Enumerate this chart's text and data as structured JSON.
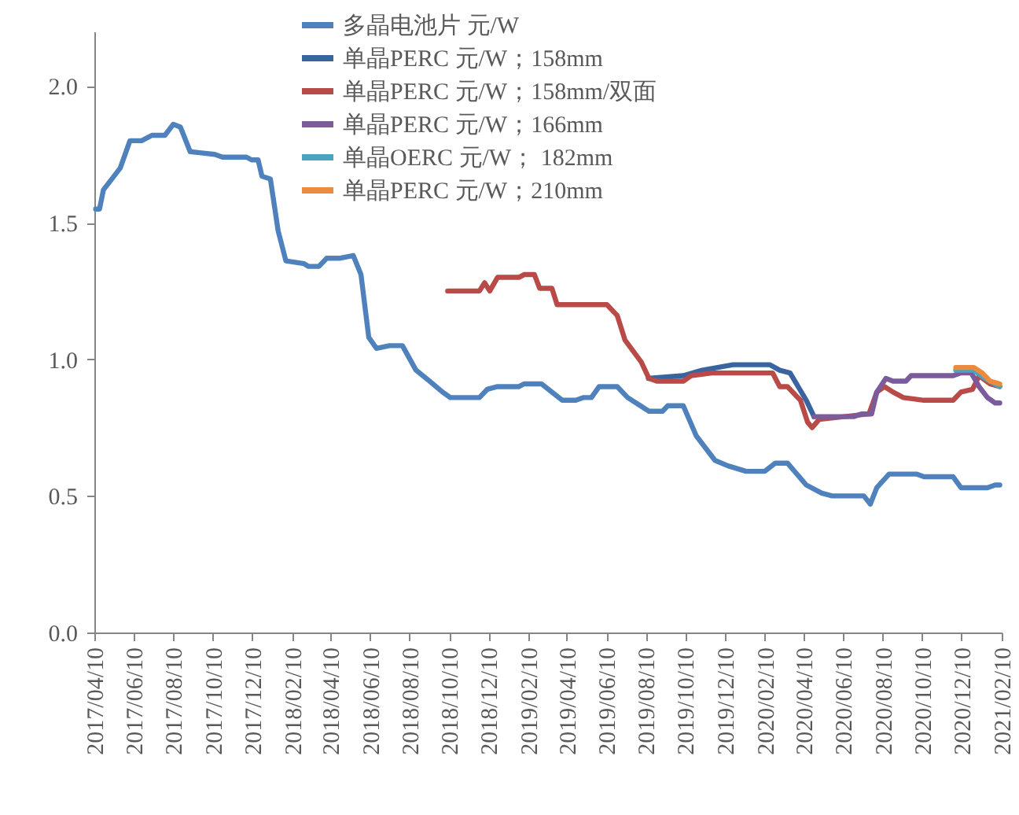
{
  "chart_data": {
    "type": "line",
    "legend": "top",
    "grid": false,
    "line_style": "solid",
    "marker": "none",
    "xlim": [
      "2017-04-10",
      "2021-02-10"
    ],
    "xticks": [
      {
        "value": "2017-04-10",
        "label": "2017/04/10"
      },
      {
        "value": "2017-06-10",
        "label": "2017/06/10"
      },
      {
        "value": "2017-08-10",
        "label": "2017/08/10"
      },
      {
        "value": "2017-10-10",
        "label": "2017/10/10"
      },
      {
        "value": "2017-12-10",
        "label": "2017/12/10"
      },
      {
        "value": "2018-02-10",
        "label": "2018/02/10"
      },
      {
        "value": "2018-04-10",
        "label": "2018/04/10"
      },
      {
        "value": "2018-06-10",
        "label": "2018/06/10"
      },
      {
        "value": "2018-08-10",
        "label": "2018/08/10"
      },
      {
        "value": "2018-10-10",
        "label": "2018/10/10"
      },
      {
        "value": "2018-12-10",
        "label": "2018/12/10"
      },
      {
        "value": "2019-02-10",
        "label": "2019/02/10"
      },
      {
        "value": "2019-04-10",
        "label": "2019/04/10"
      },
      {
        "value": "2019-06-10",
        "label": "2019/06/10"
      },
      {
        "value": "2019-08-10",
        "label": "2019/08/10"
      },
      {
        "value": "2019-10-10",
        "label": "2019/10/10"
      },
      {
        "value": "2019-12-10",
        "label": "2019/12/10"
      },
      {
        "value": "2020-02-10",
        "label": "2020/02/10"
      },
      {
        "value": "2020-04-10",
        "label": "2020/04/10"
      },
      {
        "value": "2020-06-10",
        "label": "2020/06/10"
      },
      {
        "value": "2020-08-10",
        "label": "2020/08/10"
      },
      {
        "value": "2020-10-10",
        "label": "2020/10/10"
      },
      {
        "value": "2020-12-10",
        "label": "2020/12/10"
      },
      {
        "value": "2021-02-10",
        "label": "2021/02/10"
      }
    ],
    "ylim": [
      0,
      2.2
    ],
    "yticks": [
      {
        "value": 0,
        "label": "0.0"
      },
      {
        "value": 0.5,
        "label": "0.5"
      },
      {
        "value": 1,
        "label": "1.0"
      },
      {
        "value": 1.5,
        "label": "1.5"
      },
      {
        "value": 2,
        "label": "2.0"
      }
    ],
    "series": [
      {
        "name": "多晶电池片 元/W",
        "color": "#4f81bd",
        "x": [
          "2017-04-12",
          "2017-04-18",
          "2017-04-24",
          "2017-05-20",
          "2017-06-04",
          "2017-06-22",
          "2017-07-08",
          "2017-07-28",
          "2017-08-10",
          "2017-08-21",
          "2017-09-05",
          "2017-10-13",
          "2017-10-25",
          "2017-12-01",
          "2017-12-09",
          "2017-12-19",
          "2017-12-25",
          "2018-01-07",
          "2018-01-19",
          "2018-01-31",
          "2018-02-28",
          "2018-03-07",
          "2018-03-23",
          "2018-04-04",
          "2018-04-25",
          "2018-05-15",
          "2018-05-27",
          "2018-06-08",
          "2018-06-20",
          "2018-07-10",
          "2018-07-30",
          "2018-08-20",
          "2018-09-10",
          "2018-09-30",
          "2018-10-12",
          "2018-11-26",
          "2018-12-08",
          "2018-12-24",
          "2019-01-26",
          "2019-02-03",
          "2019-03-02",
          "2019-04-03",
          "2019-04-24",
          "2019-05-06",
          "2019-05-18",
          "2019-05-30",
          "2019-06-27",
          "2019-07-13",
          "2019-08-15",
          "2019-09-05",
          "2019-09-13",
          "2019-10-07",
          "2019-10-27",
          "2019-11-25",
          "2019-12-15",
          "2020-01-12",
          "2020-02-10",
          "2020-02-26",
          "2020-03-16",
          "2020-04-14",
          "2020-05-08",
          "2020-05-24",
          "2020-07-12",
          "2020-07-22",
          "2020-08-01",
          "2020-08-20",
          "2020-10-01",
          "2020-10-13",
          "2020-11-27",
          "2020-12-09",
          "2021-01-19",
          "2021-01-31",
          "2021-02-07"
        ],
        "values": [
          1.55,
          1.55,
          1.62,
          1.7,
          1.8,
          1.8,
          1.82,
          1.82,
          1.86,
          1.85,
          1.76,
          1.75,
          1.74,
          1.74,
          1.73,
          1.73,
          1.67,
          1.66,
          1.47,
          1.36,
          1.35,
          1.34,
          1.34,
          1.37,
          1.37,
          1.38,
          1.31,
          1.08,
          1.04,
          1.05,
          1.05,
          0.96,
          0.92,
          0.88,
          0.86,
          0.86,
          0.89,
          0.9,
          0.9,
          0.91,
          0.91,
          0.85,
          0.85,
          0.86,
          0.86,
          0.9,
          0.9,
          0.86,
          0.81,
          0.81,
          0.83,
          0.83,
          0.72,
          0.63,
          0.61,
          0.59,
          0.59,
          0.62,
          0.62,
          0.54,
          0.51,
          0.5,
          0.5,
          0.47,
          0.53,
          0.58,
          0.58,
          0.57,
          0.57,
          0.53,
          0.53,
          0.54,
          0.54
        ]
      },
      {
        "name": "单晶PERC 元/W；158mm",
        "color": "#3a649f",
        "x": [
          "2019-08-14",
          "2019-10-07",
          "2019-11-05",
          "2019-12-23",
          "2020-02-18",
          "2020-03-04",
          "2020-03-20",
          "2020-04-14",
          "2020-04-26"
        ],
        "values": [
          0.93,
          0.94,
          0.96,
          0.98,
          0.98,
          0.96,
          0.95,
          0.85,
          0.79
        ]
      },
      {
        "name": "单晶PERC 元/W；158mm/双面",
        "color": "#b84a47",
        "x": [
          "2018-10-08",
          "2018-11-26",
          "2018-12-04",
          "2018-12-12",
          "2018-12-24",
          "2019-01-26",
          "2019-02-03",
          "2019-02-19",
          "2019-02-27",
          "2019-03-18",
          "2019-03-26",
          "2019-06-11",
          "2019-06-27",
          "2019-07-09",
          "2019-08-03",
          "2019-08-15",
          "2019-08-27",
          "2019-10-07",
          "2019-10-19",
          "2019-11-20",
          "2020-02-22",
          "2020-03-04",
          "2020-03-16",
          "2020-04-05",
          "2020-04-16",
          "2020-04-23",
          "2020-05-04",
          "2020-07-20",
          "2020-08-01",
          "2020-08-13",
          "2020-08-26",
          "2020-09-11",
          "2020-10-13",
          "2020-11-27",
          "2020-12-09",
          "2020-12-27",
          "2021-01-06",
          "2021-01-23",
          "2021-02-07"
        ],
        "values": [
          1.25,
          1.25,
          1.28,
          1.25,
          1.3,
          1.3,
          1.31,
          1.31,
          1.26,
          1.26,
          1.2,
          1.2,
          1.16,
          1.07,
          0.99,
          0.93,
          0.92,
          0.92,
          0.94,
          0.95,
          0.95,
          0.9,
          0.9,
          0.85,
          0.77,
          0.75,
          0.78,
          0.8,
          0.88,
          0.9,
          0.88,
          0.86,
          0.85,
          0.85,
          0.88,
          0.89,
          0.94,
          0.91,
          0.9
        ]
      },
      {
        "name": "单晶PERC 元/W；166mm",
        "color": "#7b5b9c",
        "x": [
          "2020-04-26",
          "2020-05-08",
          "2020-06-26",
          "2020-07-08",
          "2020-07-24",
          "2020-08-01",
          "2020-08-15",
          "2020-08-26",
          "2020-09-15",
          "2020-09-23",
          "2020-11-27",
          "2020-12-09",
          "2020-12-25",
          "2021-01-06",
          "2021-01-19",
          "2021-01-31",
          "2021-02-07"
        ],
        "values": [
          0.79,
          0.79,
          0.79,
          0.8,
          0.8,
          0.88,
          0.93,
          0.92,
          0.92,
          0.94,
          0.94,
          0.95,
          0.95,
          0.9,
          0.86,
          0.84,
          0.84
        ]
      },
      {
        "name": "单晶OERC 元/W； 182mm",
        "color": "#4aa4bf",
        "x": [
          "2020-12-01",
          "2020-12-29",
          "2021-01-15",
          "2021-02-07"
        ],
        "values": [
          0.96,
          0.96,
          0.93,
          0.9
        ]
      },
      {
        "name": "单晶PERC 元/W；210mm",
        "color": "#ee8a3c",
        "x": [
          "2020-12-01",
          "2020-12-29",
          "2021-01-11",
          "2021-01-23",
          "2021-02-07"
        ],
        "values": [
          0.97,
          0.97,
          0.95,
          0.92,
          0.91
        ]
      }
    ]
  }
}
